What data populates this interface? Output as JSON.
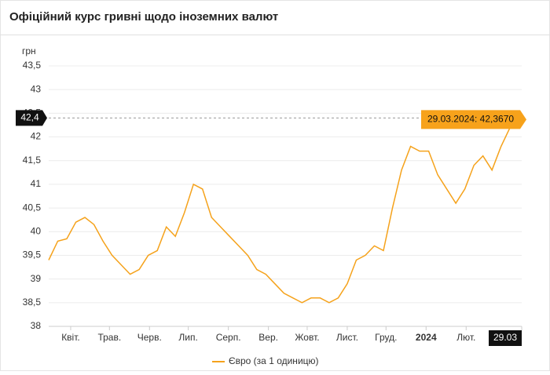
{
  "chart_data": {
    "type": "line",
    "title": "Офіційний курс гривні щодо іноземних валют",
    "ylabel": "грн",
    "x": [
      0,
      7,
      14,
      21,
      28,
      35,
      42,
      49,
      56,
      63,
      70,
      77,
      84,
      91,
      98,
      105,
      112,
      119,
      126,
      133,
      140,
      147,
      154,
      161,
      168,
      175,
      182,
      189,
      196,
      203,
      210,
      217,
      224,
      231,
      238,
      245,
      252,
      259,
      266,
      273,
      280,
      287,
      294,
      301,
      308,
      315,
      322,
      329,
      336,
      343,
      350,
      357,
      364,
      366
    ],
    "series": [
      {
        "name": "Євро (за 1 одиницю)",
        "color": "#f5a21b",
        "values": [
          39.4,
          39.8,
          39.85,
          40.2,
          40.3,
          40.15,
          39.8,
          39.5,
          39.3,
          39.1,
          39.2,
          39.5,
          39.6,
          40.1,
          39.9,
          40.4,
          41.0,
          40.9,
          40.3,
          40.1,
          39.9,
          39.7,
          39.5,
          39.2,
          39.1,
          38.9,
          38.7,
          38.6,
          38.5,
          38.6,
          38.6,
          38.5,
          38.6,
          38.9,
          39.4,
          39.5,
          39.7,
          39.6,
          40.5,
          41.3,
          41.8,
          41.7,
          41.7,
          41.2,
          40.9,
          40.6,
          40.9,
          41.4,
          41.6,
          41.3,
          41.8,
          42.2,
          42.4,
          42.367
        ]
      }
    ],
    "xlim": [
      0,
      366
    ],
    "xticks": [
      {
        "value": 17,
        "label": "Квіт."
      },
      {
        "value": 47,
        "label": "Трав."
      },
      {
        "value": 78,
        "label": "Черв."
      },
      {
        "value": 108,
        "label": "Лип."
      },
      {
        "value": 139,
        "label": "Серп."
      },
      {
        "value": 170,
        "label": "Вер."
      },
      {
        "value": 200,
        "label": "Жовт."
      },
      {
        "value": 231,
        "label": "Лист."
      },
      {
        "value": 261,
        "label": "Груд."
      },
      {
        "value": 292,
        "label": "2024"
      },
      {
        "value": 323,
        "label": "Лют."
      },
      {
        "value": 366,
        "label": "29.03"
      }
    ],
    "ylim": [
      38,
      43.5
    ],
    "yticks": [
      38,
      {
        "value": 38.5,
        "label": "38,5"
      },
      39,
      {
        "value": 39.5,
        "label": "39,5"
      },
      40,
      {
        "value": 40.5,
        "label": "40,5"
      },
      41,
      {
        "value": 41.5,
        "label": "41,5"
      },
      42,
      {
        "value": 42.5,
        "label": "42,5"
      },
      43,
      {
        "value": 43.5,
        "label": "43,5"
      }
    ],
    "grid": true,
    "y_marker": {
      "value": 42.4,
      "label": "42,4"
    },
    "tooltip": "29.03.2024: 42,3670"
  }
}
